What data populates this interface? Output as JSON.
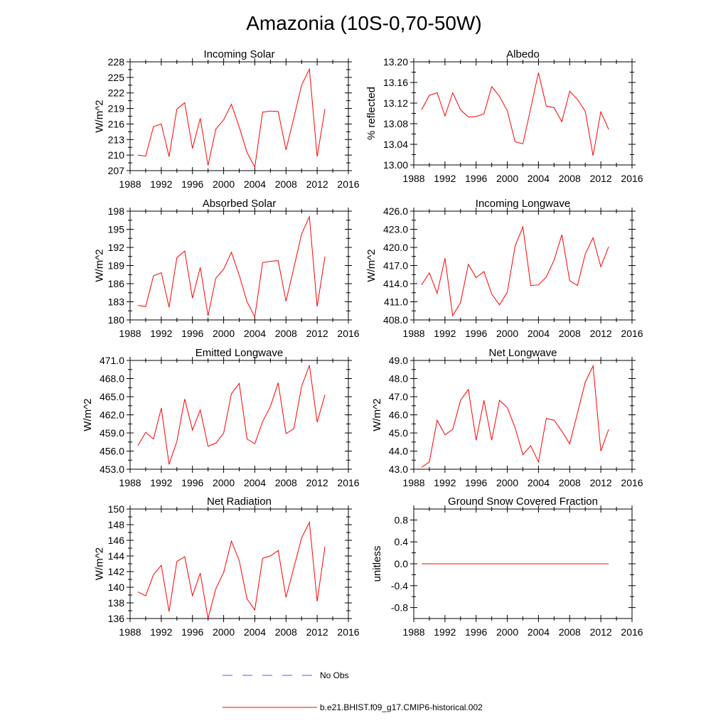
{
  "title": "Amazonia (10S-0,70-50W)",
  "colors": {
    "model": "#ff0000",
    "obs": "#5555ff",
    "axis": "#000000"
  },
  "legend": {
    "entries": [
      {
        "label": "No Obs",
        "style": "dashed",
        "color": "#5555ff"
      },
      {
        "label": "b.e21.BHIST.f09_g17.CMIP6-historical.002",
        "style": "solid",
        "color": "#ff0000"
      }
    ]
  },
  "chart_data": [
    {
      "type": "line",
      "title": "Incoming Solar",
      "ylabel": "W/m^2",
      "xlim": [
        1988,
        2016
      ],
      "xticks": [
        1988,
        1992,
        1996,
        2000,
        2004,
        2008,
        2012,
        2016
      ],
      "xtick_labels": [
        "1988",
        "1992",
        "1996",
        "2000",
        "2004",
        "2008",
        "2012",
        "2016"
      ],
      "ylim": [
        207,
        228
      ],
      "yticks": [
        207,
        210,
        213,
        216,
        219,
        222,
        225,
        228
      ],
      "ytick_labels": [
        "207",
        "210",
        "213",
        "216",
        "219",
        "222",
        "225",
        "228"
      ],
      "ylabel_side": "left",
      "series": [
        {
          "name": "b.e21.BHIST.f09_g17.CMIP6-historical.002",
          "x": [
            1989,
            1990,
            1991,
            1992,
            1993,
            1994,
            1995,
            1996,
            1997,
            1998,
            1999,
            2000,
            2001,
            2002,
            2003,
            2004,
            2005,
            2006,
            2007,
            2008,
            2009,
            2010,
            2011,
            2012,
            2013
          ],
          "y": [
            210.0,
            209.8,
            215.5,
            216.0,
            209.7,
            218.9,
            220.1,
            211.3,
            217.1,
            208.0,
            215.0,
            216.8,
            219.8,
            215.4,
            210.5,
            207.7,
            218.3,
            218.5,
            218.4,
            211.0,
            217.2,
            223.5,
            226.6,
            209.7,
            218.9
          ]
        }
      ]
    },
    {
      "type": "line",
      "title": "Albedo",
      "ylabel": "% reflected",
      "xlim": [
        1988,
        2016
      ],
      "xticks": [
        1988,
        1992,
        1996,
        2000,
        2004,
        2008,
        2012,
        2016
      ],
      "xtick_labels": [
        "1988",
        "1992",
        "1996",
        "2000",
        "2004",
        "2008",
        "2012",
        "2016"
      ],
      "ylim": [
        13.0,
        13.2
      ],
      "yticks": [
        13.0,
        13.04,
        13.08,
        13.12,
        13.16,
        13.2
      ],
      "ytick_labels": [
        "13.00",
        "13.04",
        "13.08",
        "13.12",
        "13.16",
        "13.20"
      ],
      "ylabel_side": "left",
      "series": [
        {
          "name": "b.e21.BHIST.f09_g17.CMIP6-historical.002",
          "x": [
            1989,
            1990,
            1991,
            1992,
            1993,
            1994,
            1995,
            1996,
            1997,
            1998,
            1999,
            2000,
            2001,
            2002,
            2003,
            2004,
            2005,
            2006,
            2007,
            2008,
            2009,
            2010,
            2011,
            2012,
            2013
          ],
          "y": [
            13.107,
            13.135,
            13.14,
            13.095,
            13.14,
            13.107,
            13.093,
            13.094,
            13.099,
            13.152,
            13.133,
            13.105,
            13.045,
            13.041,
            13.11,
            13.179,
            13.114,
            13.111,
            13.084,
            13.143,
            13.127,
            13.104,
            13.018,
            13.103,
            13.069
          ]
        }
      ]
    },
    {
      "type": "line",
      "title": "Absorbed Solar",
      "ylabel": "W/m^2",
      "xlim": [
        1988,
        2016
      ],
      "xticks": [
        1988,
        1992,
        1996,
        2000,
        2004,
        2008,
        2012,
        2016
      ],
      "xtick_labels": [
        "1988",
        "1992",
        "1996",
        "2000",
        "2004",
        "2008",
        "2012",
        "2016"
      ],
      "ylim": [
        180,
        198
      ],
      "yticks": [
        180,
        183,
        186,
        189,
        192,
        195,
        198
      ],
      "ytick_labels": [
        "180",
        "183",
        "186",
        "189",
        "192",
        "195",
        "198"
      ],
      "ylabel_side": "left",
      "series": [
        {
          "name": "b.e21.BHIST.f09_g17.CMIP6-historical.002",
          "x": [
            1989,
            1990,
            1991,
            1992,
            1993,
            1994,
            1995,
            1996,
            1997,
            1998,
            1999,
            2000,
            2001,
            2002,
            2003,
            2004,
            2005,
            2006,
            2007,
            2008,
            2009,
            2010,
            2011,
            2012,
            2013
          ],
          "y": [
            182.4,
            182.2,
            187.3,
            187.8,
            182.1,
            190.3,
            191.4,
            183.6,
            188.7,
            180.7,
            186.9,
            188.4,
            191.2,
            187.4,
            183.0,
            180.5,
            189.5,
            189.7,
            189.8,
            183.1,
            188.6,
            194.2,
            197.1,
            182.2,
            190.5
          ]
        }
      ]
    },
    {
      "type": "line",
      "title": "Incoming Longwave",
      "ylabel": "W/m^2",
      "xlim": [
        1988,
        2016
      ],
      "xticks": [
        1988,
        1992,
        1996,
        2000,
        2004,
        2008,
        2012,
        2016
      ],
      "xtick_labels": [
        "1988",
        "1992",
        "1996",
        "2000",
        "2004",
        "2008",
        "2012",
        "2016"
      ],
      "ylim": [
        408.0,
        426.0
      ],
      "yticks": [
        408.0,
        411.0,
        414.0,
        417.0,
        420.0,
        423.0,
        426.0
      ],
      "ytick_labels": [
        "408.0",
        "411.0",
        "414.0",
        "417.0",
        "420.0",
        "423.0",
        "426.0"
      ],
      "ylabel_side": "left",
      "series": [
        {
          "name": "b.e21.BHIST.f09_g17.CMIP6-historical.002",
          "x": [
            1989,
            1990,
            1991,
            1992,
            1993,
            1994,
            1995,
            1996,
            1997,
            1998,
            1999,
            2000,
            2001,
            2002,
            2003,
            2004,
            2005,
            2006,
            2007,
            2008,
            2009,
            2010,
            2011,
            2012,
            2013
          ],
          "y": [
            413.8,
            415.8,
            412.4,
            418.2,
            408.7,
            410.9,
            417.2,
            415.0,
            416.0,
            412.3,
            410.5,
            412.6,
            420.2,
            423.4,
            413.7,
            413.8,
            415.1,
            417.9,
            422.1,
            414.5,
            413.7,
            418.9,
            421.6,
            416.8,
            420.1
          ]
        }
      ]
    },
    {
      "type": "line",
      "title": "Emitted Longwave",
      "ylabel": "W/m^2",
      "xlim": [
        1988,
        2016
      ],
      "xticks": [
        1988,
        1992,
        1996,
        2000,
        2004,
        2008,
        2012,
        2016
      ],
      "xtick_labels": [
        "1988",
        "1992",
        "1996",
        "2000",
        "2004",
        "2008",
        "2012",
        "2016"
      ],
      "ylim": [
        453.0,
        471.0
      ],
      "yticks": [
        453.0,
        456.0,
        459.0,
        462.0,
        465.0,
        468.0,
        471.0
      ],
      "ytick_labels": [
        "453.0",
        "456.0",
        "459.0",
        "462.0",
        "465.0",
        "468.0",
        "471.0"
      ],
      "ylabel_side": "left",
      "series": [
        {
          "name": "b.e21.BHIST.f09_g17.CMIP6-historical.002",
          "x": [
            1989,
            1990,
            1991,
            1992,
            1993,
            1994,
            1995,
            1996,
            1997,
            1998,
            1999,
            2000,
            2001,
            2002,
            2003,
            2004,
            2005,
            2006,
            2007,
            2008,
            2009,
            2010,
            2011,
            2012,
            2013
          ],
          "y": [
            456.9,
            459.1,
            458.0,
            463.1,
            453.8,
            457.6,
            464.6,
            459.5,
            462.8,
            456.8,
            457.3,
            459.0,
            465.5,
            467.2,
            458.0,
            457.2,
            460.9,
            463.4,
            467.3,
            458.9,
            459.7,
            466.7,
            470.2,
            460.8,
            465.3
          ]
        }
      ]
    },
    {
      "type": "line",
      "title": "Net Longwave",
      "ylabel": "W/m^2",
      "xlim": [
        1988,
        2016
      ],
      "xticks": [
        1988,
        1992,
        1996,
        2000,
        2004,
        2008,
        2012,
        2016
      ],
      "xtick_labels": [
        "1988",
        "1992",
        "1996",
        "2000",
        "2004",
        "2008",
        "2012",
        "2016"
      ],
      "ylim": [
        43.0,
        49.0
      ],
      "yticks": [
        43.0,
        44.0,
        45.0,
        46.0,
        47.0,
        48.0,
        49.0
      ],
      "ytick_labels": [
        "43.0",
        "44.0",
        "45.0",
        "46.0",
        "47.0",
        "48.0",
        "49.0"
      ],
      "ylabel_side": "left",
      "series": [
        {
          "name": "b.e21.BHIST.f09_g17.CMIP6-historical.002",
          "x": [
            1989,
            1990,
            1991,
            1992,
            1993,
            1994,
            1995,
            1996,
            1997,
            1998,
            1999,
            2000,
            2001,
            2002,
            2003,
            2004,
            2005,
            2006,
            2007,
            2008,
            2009,
            2010,
            2011,
            2012,
            2013
          ],
          "y": [
            43.1,
            43.4,
            45.7,
            44.9,
            45.2,
            46.8,
            47.4,
            44.6,
            46.8,
            44.6,
            46.8,
            46.4,
            45.3,
            43.8,
            44.3,
            43.4,
            45.8,
            45.7,
            45.1,
            44.4,
            46.1,
            47.8,
            48.7,
            44.0,
            45.2
          ]
        }
      ]
    },
    {
      "type": "line",
      "title": "Net Radiation",
      "ylabel": "W/m^2",
      "xlim": [
        1988,
        2016
      ],
      "xticks": [
        1988,
        1992,
        1996,
        2000,
        2004,
        2008,
        2012,
        2016
      ],
      "xtick_labels": [
        "1988",
        "1992",
        "1996",
        "2000",
        "2004",
        "2008",
        "2012",
        "2016"
      ],
      "ylim": [
        136,
        150
      ],
      "yticks": [
        136,
        138,
        140,
        142,
        144,
        146,
        148,
        150
      ],
      "ytick_labels": [
        "136",
        "138",
        "140",
        "142",
        "144",
        "146",
        "148",
        "150"
      ],
      "ylabel_side": "left",
      "series": [
        {
          "name": "b.e21.BHIST.f09_g17.CMIP6-historical.002",
          "x": [
            1989,
            1990,
            1991,
            1992,
            1993,
            1994,
            1995,
            1996,
            1997,
            1998,
            1999,
            2000,
            2001,
            2002,
            2003,
            2004,
            2005,
            2006,
            2007,
            2008,
            2009,
            2010,
            2011,
            2012,
            2013
          ],
          "y": [
            139.4,
            138.9,
            141.6,
            142.8,
            136.9,
            143.3,
            143.9,
            138.9,
            141.8,
            136.0,
            139.8,
            141.9,
            145.9,
            143.4,
            138.5,
            137.1,
            143.7,
            144.0,
            144.7,
            138.7,
            142.5,
            146.3,
            148.3,
            138.2,
            145.2
          ]
        }
      ]
    },
    {
      "type": "line",
      "title": "Ground Snow Covered Fraction",
      "ylabel": "unitless",
      "xlim": [
        1988,
        2016
      ],
      "xticks": [
        1988,
        1992,
        1996,
        2000,
        2004,
        2008,
        2012,
        2016
      ],
      "xtick_labels": [
        "1988",
        "1992",
        "1996",
        "2000",
        "2004",
        "2008",
        "2012",
        "2016"
      ],
      "ylim": [
        -1.0,
        1.0
      ],
      "yticks": [
        -0.8,
        -0.4,
        0.0,
        0.4,
        0.8
      ],
      "ytick_labels": [
        "-0.8",
        "-0.4",
        "0.0",
        "0.4",
        "0.8"
      ],
      "ylabel_side": "left",
      "series": [
        {
          "name": "b.e21.BHIST.f09_g17.CMIP6-historical.002",
          "x": [
            1989,
            1990,
            1991,
            1992,
            1993,
            1994,
            1995,
            1996,
            1997,
            1998,
            1999,
            2000,
            2001,
            2002,
            2003,
            2004,
            2005,
            2006,
            2007,
            2008,
            2009,
            2010,
            2011,
            2012,
            2013
          ],
          "y": [
            0,
            0,
            0,
            0,
            0,
            0,
            0,
            0,
            0,
            0,
            0,
            0,
            0,
            0,
            0,
            0,
            0,
            0,
            0,
            0,
            0,
            0,
            0,
            0,
            0
          ]
        }
      ]
    }
  ]
}
